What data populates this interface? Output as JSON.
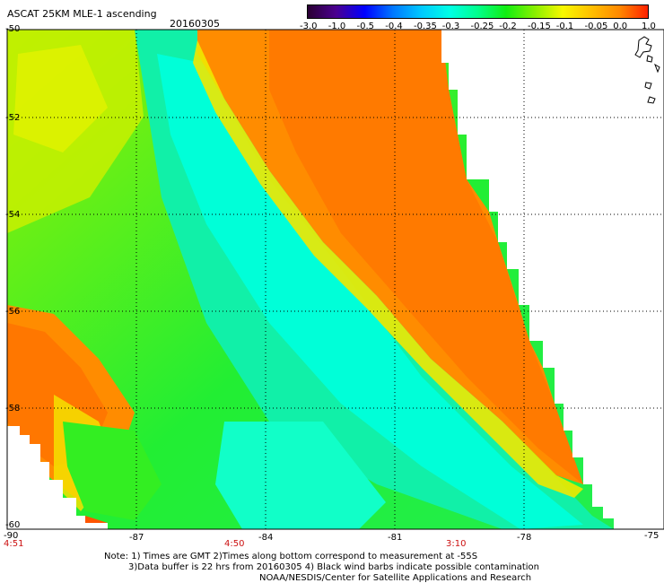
{
  "header": {
    "title": "ASCAT 25KM MLE-1 ascending",
    "date": "20160305"
  },
  "legend": {
    "labels": [
      "-3.0",
      "-1.0",
      "-0.5",
      "-0.4",
      "-0.35",
      "-0.3",
      "-0.25",
      "-0.2",
      "-0.15",
      "-0.1",
      "-0.05",
      "0.0",
      "1.0"
    ],
    "colors": [
      "#2a0033",
      "#4b0090",
      "#0000ff",
      "#0077ff",
      "#00c8ff",
      "#00ffe6",
      "#00ff8c",
      "#11ee11",
      "#88f000",
      "#f8f800",
      "#ffc000",
      "#ff8800",
      "#ff2200"
    ]
  },
  "axes": {
    "lat_labels": [
      "-50",
      "-52",
      "-54",
      "-56",
      "-58",
      "-60"
    ],
    "lon_labels": [
      "-90",
      "-87",
      "-84",
      "-81",
      "-78",
      "-75"
    ]
  },
  "times": {
    "t1": "4:51",
    "t2": "4:50",
    "t3": "3:10"
  },
  "notes": {
    "line1": "Note: 1) Times are GMT 2)Times along bottom correspond to measurement at -55S",
    "line2": "3)Data buffer is 22 hrs from 20160305 4) Black wind barbs indicate possible contamination",
    "line3": "NOAA/NESDIS/Center for Satellite Applications and Research"
  },
  "colors": {
    "orange": "#ff8c00",
    "green": "#22ee22",
    "cyan": "#00ffe0",
    "yellow": "#e8f000"
  }
}
